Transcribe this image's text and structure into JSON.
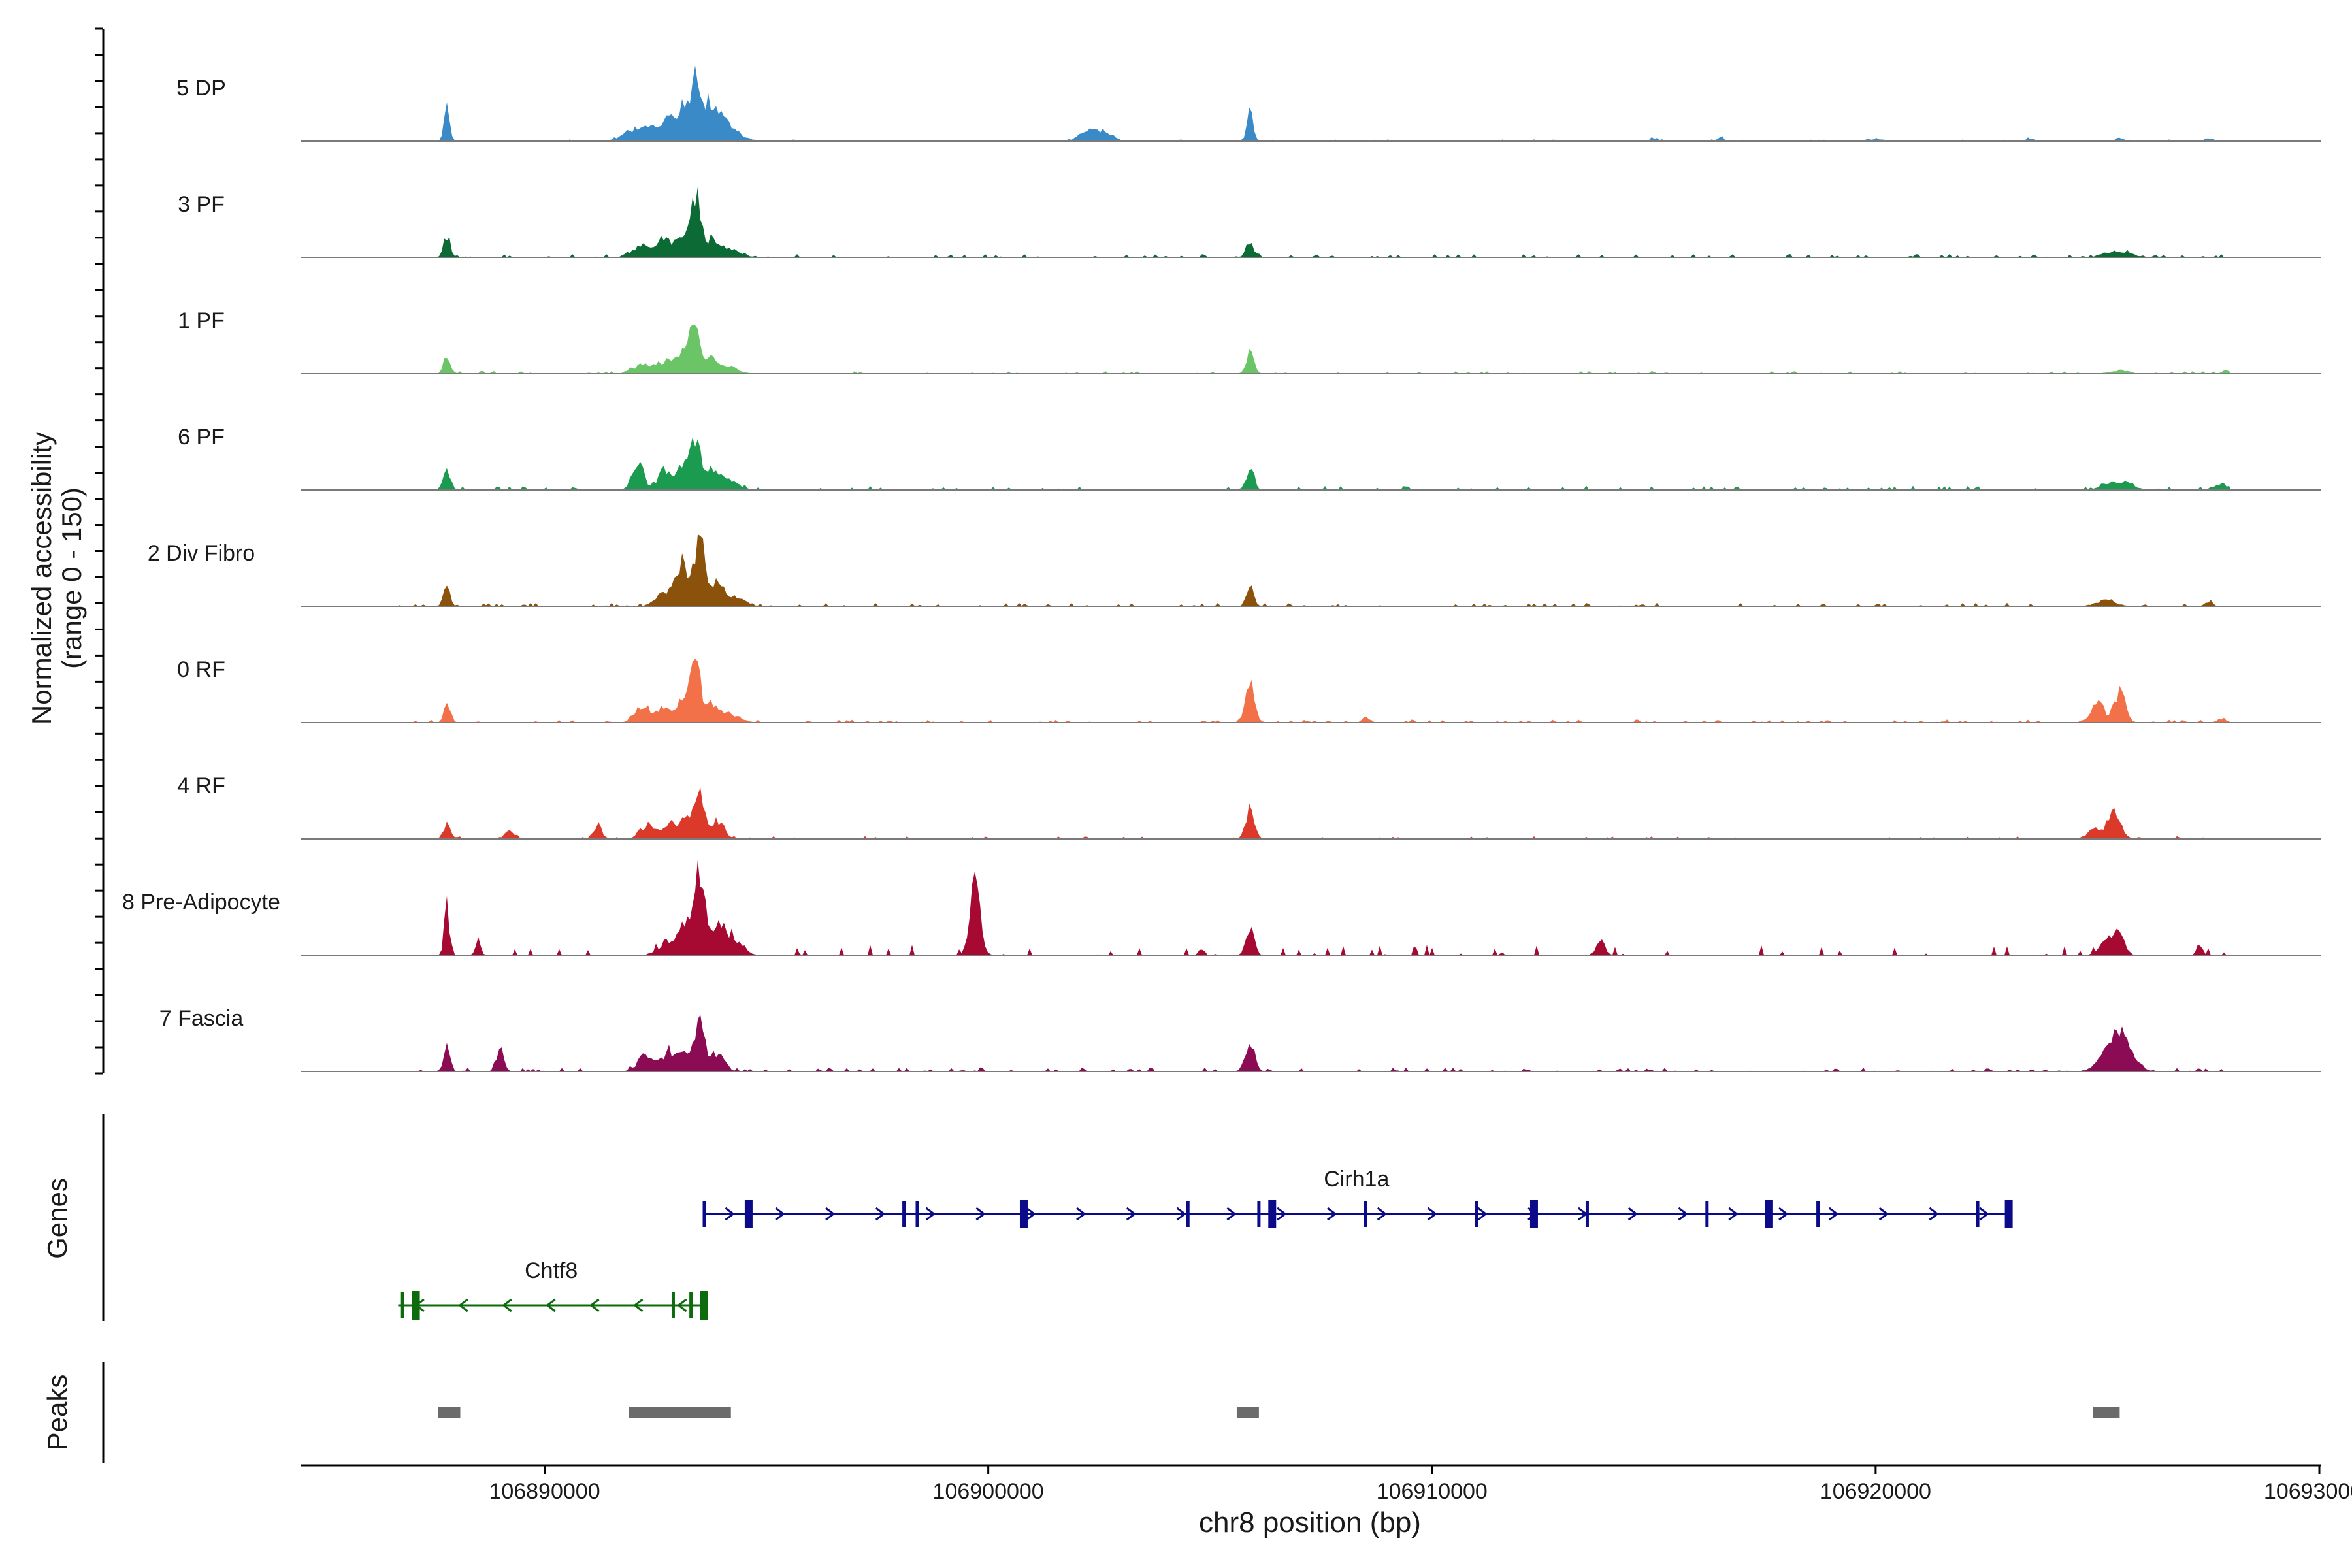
{
  "chart_data": {
    "type": "area",
    "title": "",
    "ylabel_line1": "Normalized accessibility",
    "ylabel_line2": "(range 0 - 150)",
    "xlabel": "chr8 position (bp)",
    "xlim": [
      106884500,
      106930000
    ],
    "ylim": [
      0,
      150
    ],
    "x_ticks": [
      106890000,
      106900000,
      106910000,
      106920000,
      106930000
    ],
    "x_tick_labels": [
      "106890000",
      "106900000",
      "106910000",
      "106920000",
      "106930000"
    ],
    "track_label_genes": "Genes",
    "track_label_peaks": "Peaks",
    "colors": {
      "baseline": "#7a7a7a",
      "axis": "#000000",
      "peak": "#6b6b6b",
      "gene_plus": "#0b0b8a",
      "gene_minus": "#0d6b0d"
    },
    "series": [
      {
        "name": "5 DP",
        "color": "#3a8ac8",
        "peaks": [
          [
            106887800,
            55,
            60
          ],
          [
            106892000,
            18,
            250
          ],
          [
            106892400,
            22,
            200
          ],
          [
            106892800,
            35,
            150
          ],
          [
            106893100,
            55,
            130
          ],
          [
            106893400,
            100,
            120
          ],
          [
            106893700,
            65,
            140
          ],
          [
            106894000,
            40,
            140
          ],
          [
            106894300,
            15,
            200
          ],
          [
            106902300,
            22,
            200
          ],
          [
            106902700,
            12,
            150
          ],
          [
            106905900,
            50,
            70
          ],
          [
            106915000,
            5,
            80
          ],
          [
            106916500,
            6,
            80
          ],
          [
            106920000,
            4,
            80
          ],
          [
            106923500,
            5,
            80
          ],
          [
            106925500,
            6,
            80
          ],
          [
            106927500,
            5,
            80
          ]
        ],
        "noise": 1.2,
        "start": 106887300,
        "end": 106928200
      },
      {
        "name": "3 PF",
        "color": "#0c6b35",
        "peaks": [
          [
            106887800,
            40,
            70
          ],
          [
            106892200,
            22,
            200
          ],
          [
            106892700,
            30,
            160
          ],
          [
            106893100,
            38,
            130
          ],
          [
            106893400,
            125,
            110
          ],
          [
            106893800,
            35,
            140
          ],
          [
            106894200,
            16,
            180
          ],
          [
            106905900,
            30,
            80
          ],
          [
            106925300,
            10,
            200
          ],
          [
            106925700,
            6,
            150
          ]
        ],
        "noise": 2.2,
        "start": 106887300,
        "end": 106928200
      },
      {
        "name": "1 PF",
        "color": "#6bc466",
        "peaks": [
          [
            106887800,
            32,
            70
          ],
          [
            106892200,
            16,
            200
          ],
          [
            106892700,
            22,
            160
          ],
          [
            106893100,
            35,
            140
          ],
          [
            106893400,
            110,
            110
          ],
          [
            106893800,
            32,
            140
          ],
          [
            106894200,
            12,
            180
          ],
          [
            106905900,
            42,
            80
          ],
          [
            106925500,
            6,
            180
          ],
          [
            106927900,
            5,
            80
          ]
        ],
        "noise": 1.8,
        "start": 106887300,
        "end": 106928200
      },
      {
        "name": "6 PF",
        "color": "#1b9b50",
        "peaks": [
          [
            106887800,
            40,
            70
          ],
          [
            106892100,
            55,
            120
          ],
          [
            106892700,
            35,
            150
          ],
          [
            106893100,
            40,
            130
          ],
          [
            106893400,
            90,
            120
          ],
          [
            106893800,
            38,
            140
          ],
          [
            106894200,
            15,
            200
          ],
          [
            106905900,
            35,
            90
          ],
          [
            106925300,
            15,
            200
          ],
          [
            106925700,
            12,
            150
          ],
          [
            106927800,
            10,
            150
          ]
        ],
        "noise": 2.8,
        "start": 106887300,
        "end": 106928200
      },
      {
        "name": "2 Div Fibro",
        "color": "#8a520b",
        "peaks": [
          [
            106887800,
            35,
            70
          ],
          [
            106892700,
            25,
            180
          ],
          [
            106893100,
            80,
            140
          ],
          [
            106893500,
            135,
            110
          ],
          [
            106893900,
            45,
            140
          ],
          [
            106894300,
            15,
            200
          ],
          [
            106905900,
            38,
            80
          ],
          [
            106925200,
            12,
            200
          ],
          [
            106927500,
            8,
            80
          ]
        ],
        "noise": 2.2,
        "start": 106886500,
        "end": 106928200
      },
      {
        "name": "0 RF",
        "color": "#f27148",
        "peaks": [
          [
            106887800,
            35,
            70
          ],
          [
            106892200,
            30,
            160
          ],
          [
            106892700,
            28,
            160
          ],
          [
            106893100,
            35,
            140
          ],
          [
            106893400,
            110,
            110
          ],
          [
            106893800,
            35,
            140
          ],
          [
            106894200,
            15,
            180
          ],
          [
            106905900,
            70,
            100
          ],
          [
            106908500,
            12,
            60
          ],
          [
            106925000,
            30,
            160
          ],
          [
            106925500,
            55,
            130
          ],
          [
            106927800,
            6,
            100
          ]
        ],
        "noise": 2.0,
        "start": 106886800,
        "end": 106928200
      },
      {
        "name": "4 RF",
        "color": "#db3a2b",
        "peaks": [
          [
            106887800,
            25,
            80
          ],
          [
            106889200,
            12,
            120
          ],
          [
            106891200,
            25,
            90
          ],
          [
            106892300,
            25,
            160
          ],
          [
            106892800,
            28,
            150
          ],
          [
            106893200,
            38,
            140
          ],
          [
            106893500,
            85,
            110
          ],
          [
            106893900,
            35,
            140
          ],
          [
            106905900,
            65,
            90
          ],
          [
            106925000,
            20,
            180
          ],
          [
            106925400,
            50,
            130
          ]
        ],
        "noise": 1.8,
        "start": 106886800,
        "end": 106928200
      },
      {
        "name": "8 Pre-Adipocyte",
        "color": "#a60a32",
        "peaks": [
          [
            106887800,
            85,
            60
          ],
          [
            106888500,
            30,
            60
          ],
          [
            106892800,
            28,
            200
          ],
          [
            106893200,
            55,
            140
          ],
          [
            106893500,
            140,
            110
          ],
          [
            106893900,
            70,
            140
          ],
          [
            106894300,
            30,
            180
          ],
          [
            106899700,
            120,
            120
          ],
          [
            106904800,
            15,
            60
          ],
          [
            106905900,
            50,
            90
          ],
          [
            106913800,
            25,
            100
          ],
          [
            106925200,
            28,
            160
          ],
          [
            106925500,
            40,
            120
          ],
          [
            106927300,
            20,
            60
          ]
        ],
        "noise": 2.5,
        "start": 106886500,
        "end": 106928000,
        "sparse": true
      },
      {
        "name": "7 Fascia",
        "color": "#8c0b55",
        "peaks": [
          [
            106887800,
            45,
            70
          ],
          [
            106889000,
            40,
            80
          ],
          [
            106892300,
            30,
            180
          ],
          [
            106892800,
            35,
            150
          ],
          [
            106893200,
            38,
            140
          ],
          [
            106893500,
            85,
            110
          ],
          [
            106893900,
            35,
            150
          ],
          [
            106905900,
            62,
            100
          ],
          [
            106925200,
            35,
            200
          ],
          [
            106925500,
            62,
            140
          ],
          [
            106925800,
            30,
            150
          ]
        ],
        "noise": 2.6,
        "start": 106886500,
        "end": 106928200
      }
    ],
    "genes": [
      {
        "name": "Cirh1a",
        "strand": "+",
        "start": 106893600,
        "end": 106923000,
        "exons": [
          106893600,
          106894600,
          106898100,
          106898400,
          106900800,
          106904500,
          106906100,
          106906400,
          106908500,
          106911000,
          106912300,
          106913500,
          106916200,
          106917600,
          106918700,
          106922300,
          106923000
        ]
      },
      {
        "name": "Chtf8",
        "strand": "-",
        "start": 106886700,
        "end": 106893600,
        "exons": [
          106886800,
          106887100,
          106892900,
          106893300,
          106893600
        ]
      }
    ],
    "peaks_track": [
      [
        106887600,
        106888100
      ],
      [
        106891900,
        106894200
      ],
      [
        106905600,
        106906100
      ],
      [
        106924900,
        106925500
      ]
    ]
  }
}
